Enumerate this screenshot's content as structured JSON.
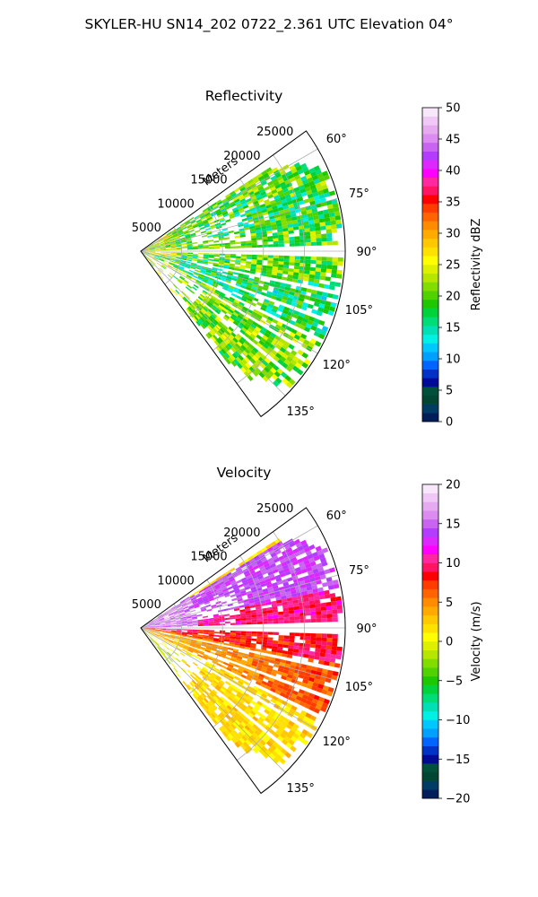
{
  "figure_title": "SKYLER-HU  SN14_202  0722_2.361 UTC Elevation 04°",
  "chart_data": [
    {
      "type": "heatmap",
      "title": "Reflectivity",
      "radial_axis_label": "Meters",
      "radial_ticks": [
        5000,
        10000,
        15000,
        20000,
        25000
      ],
      "radial_max": 25000,
      "azimuth_ticks": [
        "60°",
        "75°",
        "90°",
        "105°",
        "120°",
        "135°"
      ],
      "azimuth_range": [
        54,
        144
      ],
      "colorbar": {
        "label": "Reflectivity dBZ",
        "vmin": 0,
        "vmax": 50,
        "ticks": [
          "0",
          "5",
          "10",
          "15",
          "20",
          "25",
          "30",
          "35",
          "40",
          "45",
          "50"
        ],
        "colors": [
          "#001e5a",
          "#003c64",
          "#004632",
          "#00503c",
          "#000a96",
          "#0032c8",
          "#0064ff",
          "#00a0ff",
          "#00c8ff",
          "#00f0e6",
          "#00e0b4",
          "#00dc78",
          "#00d23c",
          "#1ec800",
          "#50d200",
          "#82dc00",
          "#b4e600",
          "#dcf000",
          "#ffff00",
          "#ffe100",
          "#ffc800",
          "#ffaa00",
          "#ff8c00",
          "#ff6400",
          "#ff3c00",
          "#ff0000",
          "#ff1464",
          "#ff28a0",
          "#ff00ff",
          "#dc28ff",
          "#b43cff",
          "#c864f0",
          "#dc8cf0",
          "#e6aaf0",
          "#f0c8f5",
          "#f8e6fa"
        ]
      },
      "dominant_values_by_sector": [
        {
          "azimuth_range": [
            58,
            70
          ],
          "value": 20
        },
        {
          "azimuth_range": [
            70,
            80
          ],
          "value": 18
        },
        {
          "azimuth_range": [
            80,
            88
          ],
          "value": 20
        },
        {
          "azimuth_range": [
            90,
            100
          ],
          "value": 20
        },
        {
          "azimuth_range": [
            100,
            115
          ],
          "value": 17
        },
        {
          "azimuth_range": [
            115,
            140
          ],
          "value": 21
        }
      ]
    },
    {
      "type": "heatmap",
      "title": "Velocity",
      "radial_axis_label": "Meters",
      "radial_ticks": [
        5000,
        10000,
        15000,
        20000,
        25000
      ],
      "radial_max": 25000,
      "azimuth_ticks": [
        "60°",
        "75°",
        "90°",
        "105°",
        "120°",
        "135°"
      ],
      "azimuth_range": [
        54,
        144
      ],
      "colorbar": {
        "label": "Velocity (m/s)",
        "vmin": -20,
        "vmax": 20,
        "ticks": [
          "−20",
          "−15",
          "−10",
          "−5",
          "0",
          "5",
          "10",
          "15",
          "20"
        ],
        "colors": [
          "#001e5a",
          "#003c64",
          "#004632",
          "#00503c",
          "#000a96",
          "#0032c8",
          "#0064ff",
          "#00a0ff",
          "#00c8ff",
          "#00f0e6",
          "#00e0b4",
          "#00dc78",
          "#00d23c",
          "#1ec800",
          "#50d200",
          "#82dc00",
          "#b4e600",
          "#dcf000",
          "#ffff00",
          "#ffe100",
          "#ffc800",
          "#ffaa00",
          "#ff8c00",
          "#ff6400",
          "#ff3c00",
          "#ff0000",
          "#ff1464",
          "#ff28a0",
          "#ff00ff",
          "#dc28ff",
          "#b43cff",
          "#c864f0",
          "#dc8cf0",
          "#e6aaf0",
          "#f0c8f5",
          "#f8e6fa"
        ]
      },
      "dominant_values_by_sector": [
        {
          "azimuth_range": [
            58,
            78
          ],
          "value": 14
        },
        {
          "azimuth_range": [
            78,
            90
          ],
          "value": 10
        },
        {
          "azimuth_range": [
            90,
            100
          ],
          "value": 8
        },
        {
          "azimuth_range": [
            100,
            115
          ],
          "value": 5
        },
        {
          "azimuth_range": [
            115,
            140
          ],
          "value": 2
        }
      ]
    }
  ]
}
